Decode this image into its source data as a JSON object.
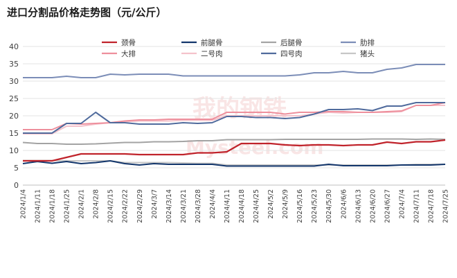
{
  "chart_data": {
    "type": "line",
    "title": "进口分割品价格走势图（元/公斤）",
    "xlabel": "",
    "ylabel": "",
    "ylim": [
      0,
      40
    ],
    "yticks": [
      0,
      5,
      10,
      15,
      20,
      25,
      30,
      35,
      40
    ],
    "grid": true,
    "watermark": {
      "logo": "我的钢铁",
      "text": "Mysteel.com"
    },
    "x": [
      "2024/1/4",
      "2024/1/11",
      "2024/1/18",
      "2024/1/25",
      "2024/2/1",
      "2024/2/8",
      "2024/2/15",
      "2024/2/22",
      "2024/2/29",
      "2024/3/7",
      "2024/3/14",
      "2024/3/21",
      "2024/3/28",
      "2024/4/4",
      "2024/4/11",
      "2024/4/18",
      "2024/4/25",
      "2024/5/2",
      "2024/5/9",
      "2024/5/16",
      "2024/5/23",
      "2024/5/30",
      "2024/6/6",
      "2024/6/13",
      "2024/6/20",
      "2024/6/27",
      "2024/7/4",
      "2024/7/11",
      "2024/7/18",
      "2024/7/25"
    ],
    "series": [
      {
        "name": "颈骨",
        "color": "#c0232b",
        "width": 2.2,
        "values": [
          7,
          7,
          7,
          8,
          9,
          9,
          9,
          9,
          8.8,
          8.8,
          8.8,
          8.8,
          9.3,
          9.3,
          9.6,
          12,
          12,
          12,
          11.6,
          11.4,
          11.6,
          11.6,
          11.4,
          11.6,
          11.6,
          12.4,
          12,
          12.5,
          12.5,
          13
        ]
      },
      {
        "name": "前腿骨",
        "color": "#12356b",
        "width": 2,
        "values": [
          6.2,
          6.8,
          6.3,
          6.8,
          6.2,
          6.5,
          7,
          6.2,
          5.8,
          6.2,
          6,
          6,
          6,
          6,
          5.5,
          5.5,
          5.5,
          5.5,
          5.5,
          5.5,
          5.5,
          6,
          5.6,
          5.6,
          5.6,
          5.6,
          5.8,
          5.8,
          5.8,
          6
        ]
      },
      {
        "name": "后腿骨",
        "color": "#a3a3a3",
        "width": 2,
        "values": [
          12.3,
          12,
          12,
          11.8,
          11.8,
          11.9,
          12.1,
          12.3,
          12.3,
          12.5,
          12.5,
          12.6,
          12.8,
          12.8,
          13.1,
          13.1,
          13.1,
          13.1,
          13.2,
          13.2,
          13.2,
          13.2,
          13.2,
          13.2,
          13.3,
          13.3,
          13.3,
          13.2,
          13.3,
          13.2
        ]
      },
      {
        "name": "肋排",
        "color": "#7b8db7",
        "width": 2,
        "values": [
          31,
          31,
          31,
          31.4,
          31,
          31,
          32,
          31.8,
          32,
          32,
          32,
          31.5,
          31.5,
          31.5,
          31.5,
          31.5,
          31.5,
          31.5,
          31.5,
          31.8,
          32.4,
          32.4,
          32.8,
          32.4,
          32.4,
          33.4,
          33.8,
          34.8,
          34.8,
          34.8
        ]
      },
      {
        "name": "大排",
        "color": "#ee8f9c",
        "width": 2,
        "values": [
          16,
          16,
          16,
          17.8,
          17.6,
          17.8,
          18,
          18.5,
          18.8,
          18.8,
          19,
          19,
          19,
          19,
          21,
          21,
          21,
          21,
          20.5,
          21,
          21,
          21.2,
          21.2,
          21,
          21,
          21.2,
          21.4,
          23,
          23,
          23.8
        ]
      },
      {
        "name": "二号肉",
        "color": "#f4c2cb",
        "width": 2,
        "values": [
          14.8,
          14.8,
          14.8,
          17,
          17,
          17.6,
          18,
          18.3,
          18.5,
          18.5,
          18.5,
          18.7,
          18.7,
          18.7,
          20,
          20,
          20,
          20,
          20,
          20,
          20.5,
          21,
          20.8,
          21,
          21,
          21,
          21.2,
          23,
          23,
          23
        ]
      },
      {
        "name": "四号肉",
        "color": "#4f6a9c",
        "width": 2,
        "values": [
          15,
          15,
          15,
          17.8,
          17.8,
          21,
          18,
          18,
          17.6,
          17.6,
          17.6,
          18,
          17.8,
          18,
          19.8,
          19.8,
          19.5,
          19.5,
          19.2,
          19.5,
          20.5,
          21.8,
          21.8,
          22,
          21.5,
          22.8,
          22.8,
          23.8,
          23.8,
          23.8
        ]
      },
      {
        "name": "猪头",
        "color": "#c6c6c6",
        "width": 2,
        "values": [
          7.1,
          7.1,
          7.1,
          7,
          7,
          7,
          7,
          6.5,
          6.5,
          6.5,
          6.5,
          6.4,
          6.3,
          6.3,
          5.8,
          5.8,
          5.8,
          5.8,
          5.8,
          5.8,
          5.8,
          5.8,
          5.8,
          5.8,
          5.8,
          5.8,
          5.8,
          6,
          6,
          6
        ]
      }
    ]
  }
}
